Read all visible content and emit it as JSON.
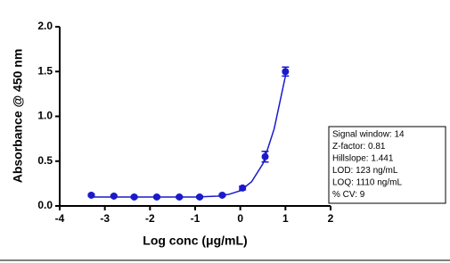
{
  "chart_data": {
    "type": "scatter",
    "xlabel": "Log conc (μg/mL)",
    "ylabel": "Absorbance @ 450 nm",
    "x": [
      -3.3,
      -2.8,
      -2.35,
      -1.85,
      -1.35,
      -0.9,
      -0.4,
      0.05,
      0.55,
      1.0
    ],
    "values": [
      0.12,
      0.11,
      0.1,
      0.1,
      0.1,
      0.1,
      0.12,
      0.2,
      0.55,
      1.5
    ],
    "errors": [
      0.01,
      0.01,
      0.01,
      0.01,
      0.01,
      0.01,
      0.01,
      0.02,
      0.06,
      0.05
    ],
    "fit": {
      "x": [
        -3.3,
        -2.5,
        -1.5,
        -1.0,
        -0.5,
        -0.25,
        0.0,
        0.25,
        0.5,
        0.75,
        1.0
      ],
      "values": [
        0.1,
        0.1,
        0.1,
        0.1,
        0.11,
        0.13,
        0.17,
        0.27,
        0.47,
        0.86,
        1.45
      ]
    },
    "color": "#1a1acc",
    "xlim": [
      -4,
      2
    ],
    "xticks": [
      -4,
      -3,
      -2,
      -1,
      0,
      1,
      2
    ],
    "ylim": [
      0,
      2
    ],
    "yticks": [
      {
        "value": 0,
        "label": "0.0"
      },
      {
        "value": 0.5,
        "label": "0.5"
      },
      {
        "value": 1,
        "label": "1.0"
      },
      {
        "value": 1.5,
        "label": "1.5"
      },
      {
        "value": 2,
        "label": "2.0"
      }
    ],
    "stats": [
      "Signal window: 14",
      "Z-factor: 0.81",
      "Hillslope: 1.441",
      "LOD: 123 ng/mL",
      "LOQ: 1110 ng/mL",
      "% CV: 9"
    ]
  }
}
